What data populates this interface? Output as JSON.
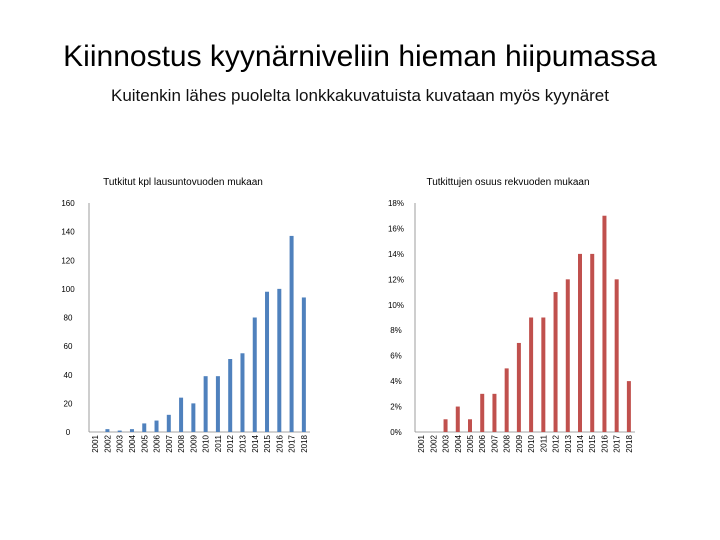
{
  "slide": {
    "title": "Kiinnostus kyynärniveliin hieman hiipumassa",
    "subtitle": "Kuitenkin lähes puolelta lonkkakuvatuista kuvataan myös kyynäret"
  },
  "chart_data": [
    {
      "type": "bar",
      "title": "Tutkitut kpl lausuntovuoden mukaan",
      "categories": [
        "2001",
        "2002",
        "2003",
        "2004",
        "2005",
        "2006",
        "2007",
        "2008",
        "2009",
        "2010",
        "2011",
        "2012",
        "2013",
        "2014",
        "2015",
        "2016",
        "2017",
        "2018"
      ],
      "values": [
        0,
        2,
        1,
        2,
        6,
        8,
        12,
        24,
        20,
        39,
        39,
        51,
        55,
        80,
        98,
        100,
        137,
        94
      ],
      "ylim": [
        0,
        160
      ],
      "yticks": [
        "0",
        "20",
        "40",
        "60",
        "80",
        "100",
        "120",
        "140",
        "160"
      ],
      "color": "#4f81bd",
      "grid": false
    },
    {
      "type": "bar",
      "title": "Tutkittujen osuus rekvuoden mukaan",
      "categories": [
        "2001",
        "2002",
        "2003",
        "2004",
        "2005",
        "2006",
        "2007",
        "2008",
        "2009",
        "2010",
        "2011",
        "2012",
        "2013",
        "2014",
        "2015",
        "2016",
        "2017",
        "2018"
      ],
      "values": [
        0,
        0,
        1,
        2,
        1,
        3,
        3,
        5,
        7,
        9,
        9,
        11,
        12,
        14,
        14,
        17,
        12,
        4
      ],
      "ylim": [
        0,
        18
      ],
      "yticks": [
        "0%",
        "2%",
        "4%",
        "6%",
        "8%",
        "10%",
        "12%",
        "14%",
        "16%",
        "18%"
      ],
      "color": "#c0504d",
      "grid": false
    }
  ]
}
